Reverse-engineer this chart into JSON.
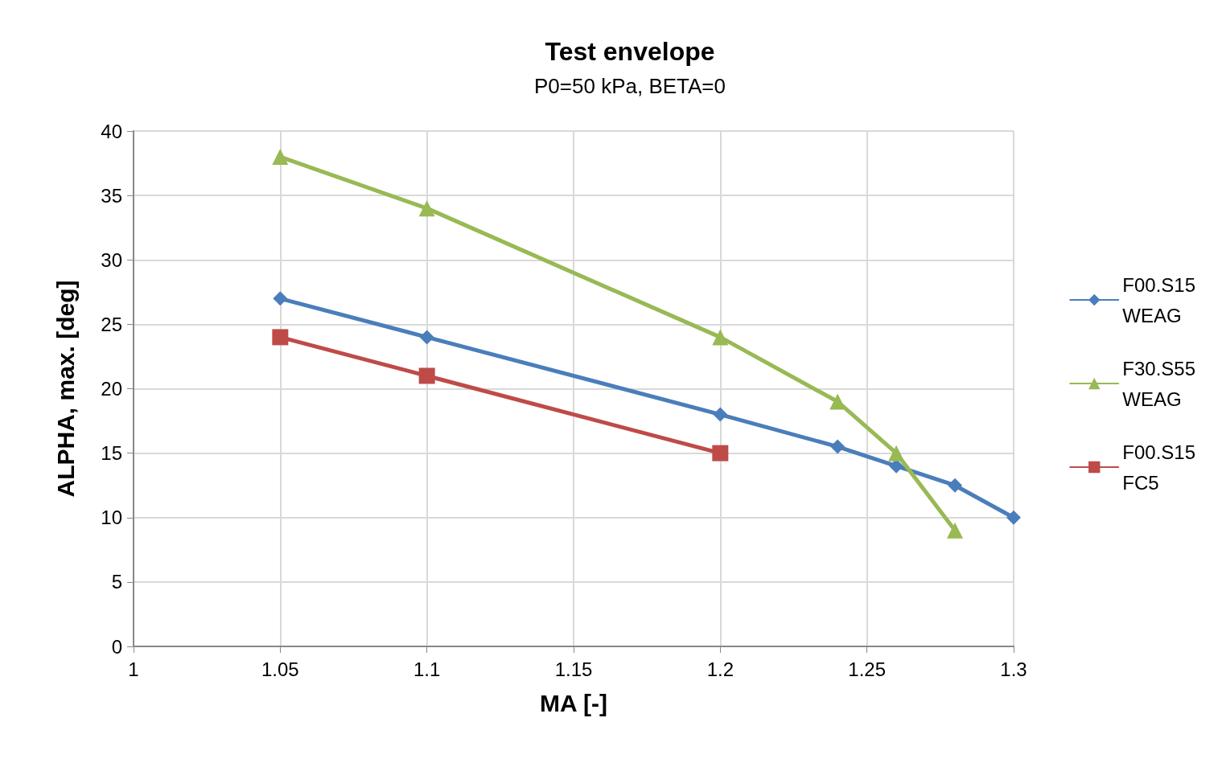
{
  "chart_data": {
    "type": "line",
    "title": "Test envelope",
    "subtitle": "P0=50 kPa, BETA=0",
    "xlabel": "MA [-]",
    "ylabel": "ALPHA, max. [deg]",
    "series": [
      {
        "name": "F00.S15\nWEAG",
        "color": "#4a7ebb",
        "marker": "diamond",
        "x": [
          1.05,
          1.1,
          1.2,
          1.24,
          1.26,
          1.28,
          1.3
        ],
        "values": [
          27,
          24,
          18,
          15.5,
          14,
          12.5,
          10
        ]
      },
      {
        "name": "F30.S55\nWEAG",
        "color": "#98b954",
        "marker": "triangle",
        "x": [
          1.05,
          1.1,
          1.2,
          1.24,
          1.26,
          1.28
        ],
        "values": [
          38,
          34,
          24,
          19,
          15,
          9
        ]
      },
      {
        "name": "F00.S15\nFC5",
        "color": "#be4b48",
        "marker": "square",
        "x": [
          1.05,
          1.1,
          1.2
        ],
        "values": [
          24,
          21,
          15
        ]
      }
    ],
    "xlim": [
      1,
      1.3
    ],
    "xticks": [
      1,
      1.05,
      1.1,
      1.15,
      1.2,
      1.25,
      1.3
    ],
    "ylim": [
      0,
      40
    ],
    "yticks": [
      0,
      5,
      10,
      15,
      20,
      25,
      30,
      35,
      40
    ],
    "grid": true,
    "legend": "right",
    "line_style": "solid"
  }
}
